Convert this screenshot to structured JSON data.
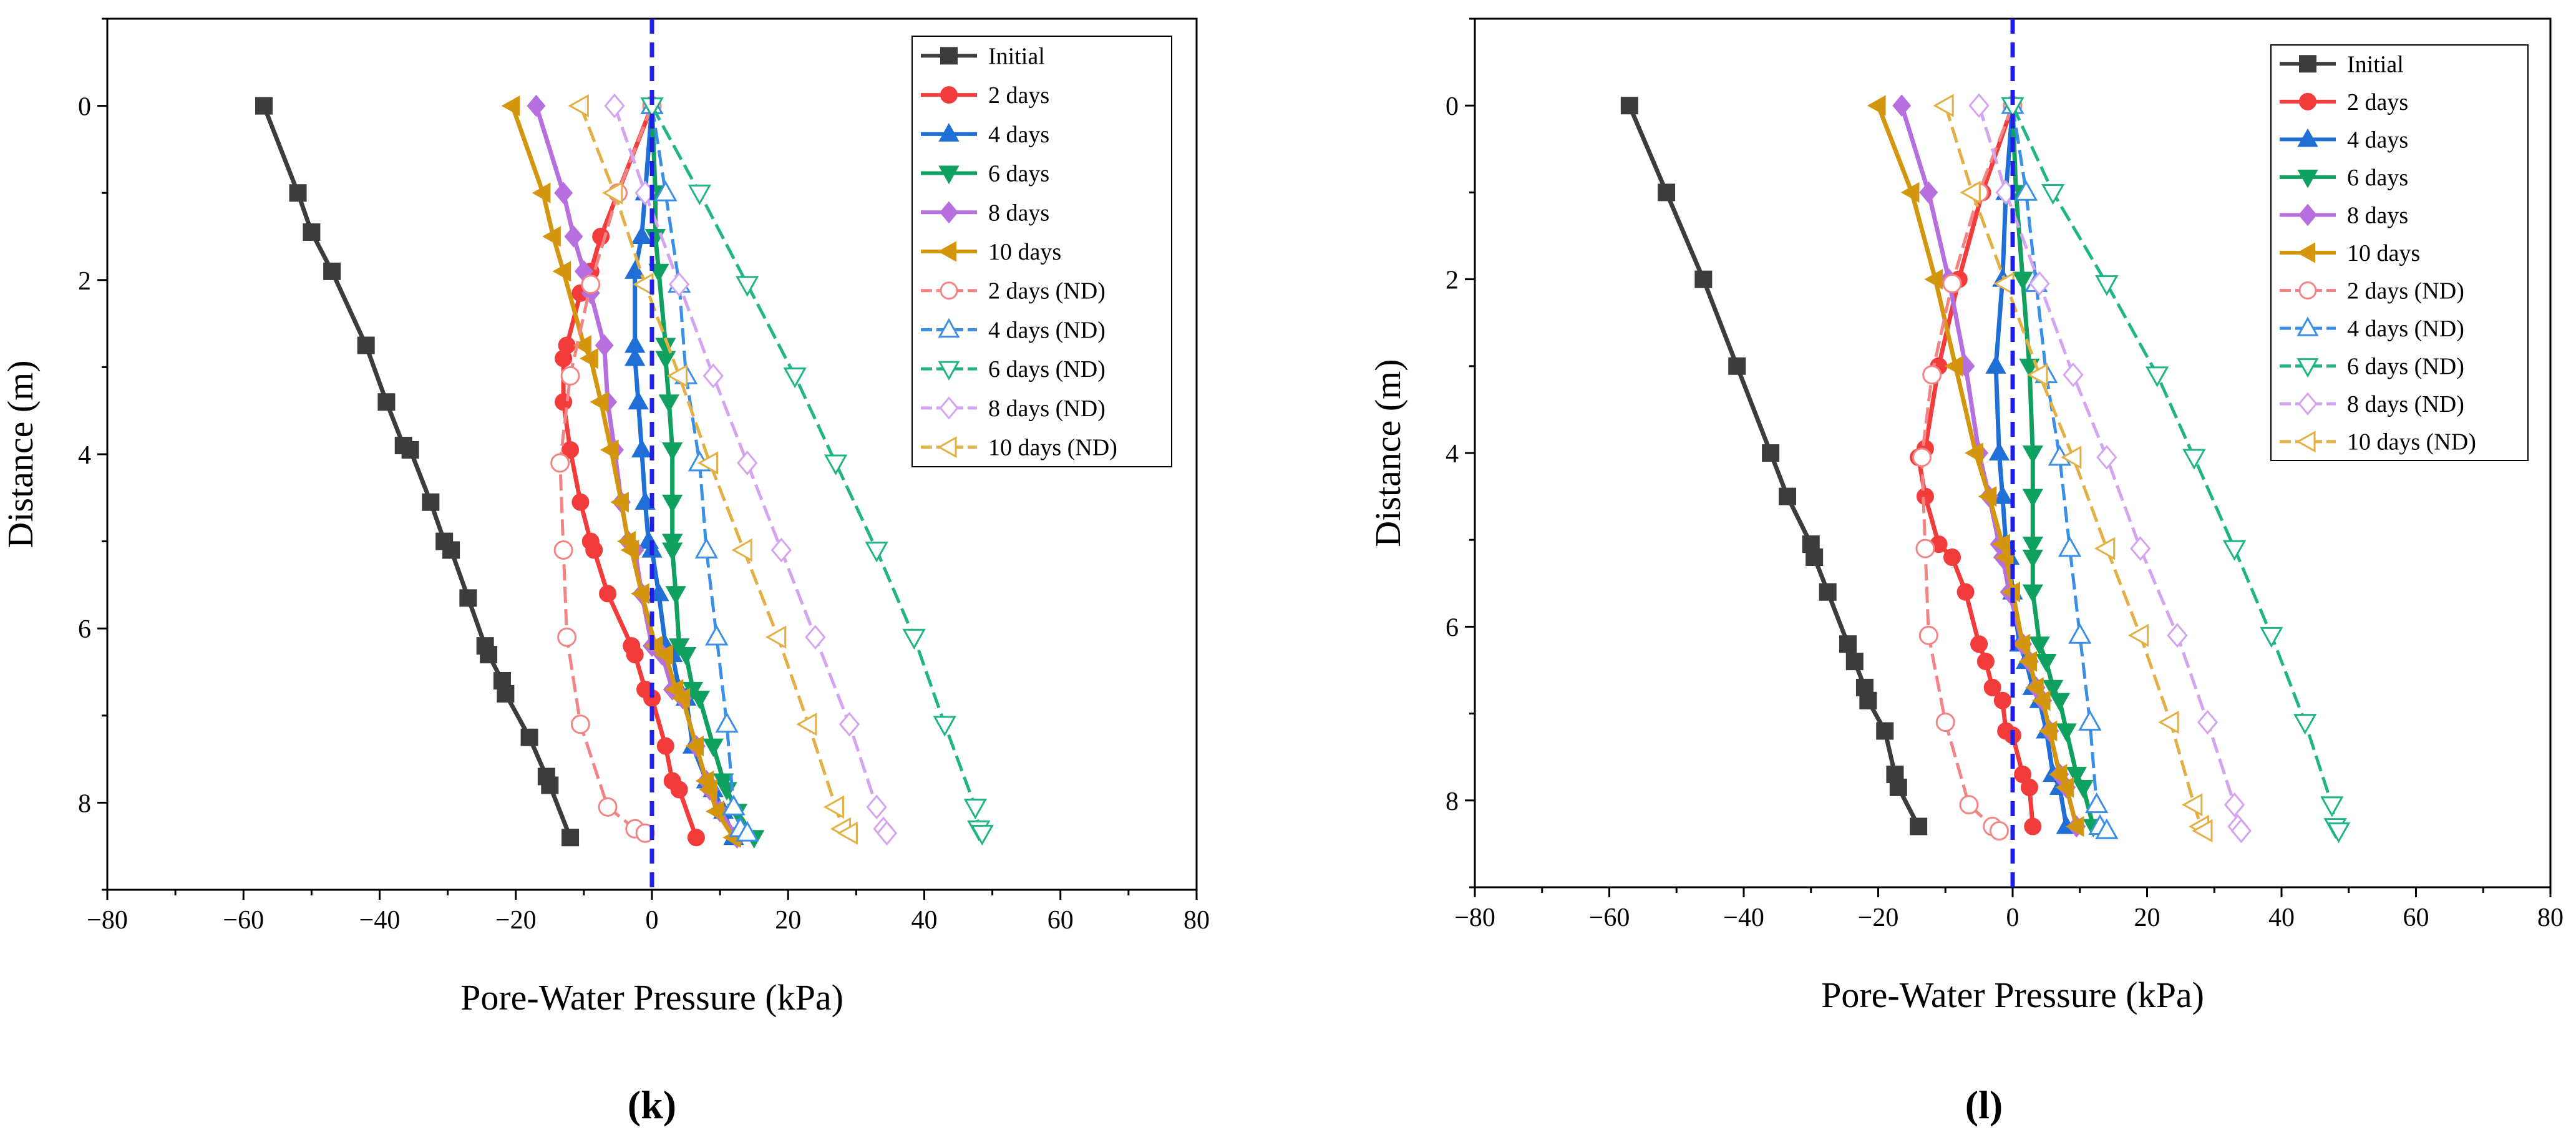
{
  "chart_data": [
    {
      "type": "line",
      "panel_label": "(k)",
      "xlabel": "Pore-Water Pressure (kPa)",
      "ylabel": "Distance (m)",
      "xlim": [
        -80,
        80
      ],
      "ylim": [
        9,
        -1
      ],
      "xticks": [
        "−80",
        "−60",
        "−40",
        "−20",
        "0",
        "20",
        "40",
        "60",
        "80"
      ],
      "yticks": [
        "0",
        "2",
        "4",
        "6",
        "8"
      ],
      "reference_line": {
        "x": 0,
        "style": "dashed"
      },
      "legend_position": "top-right",
      "series": [
        {
          "name": "Initial",
          "x": [
            -57,
            -52,
            -50,
            -47,
            -42,
            -39,
            -36.5,
            -35.5,
            -32.5,
            -30.5,
            -29.5,
            -27,
            -24.5,
            -24,
            -22,
            -21.5,
            -18,
            -15.5,
            -15,
            -12
          ],
          "y": [
            0,
            1,
            1.45,
            1.9,
            2.75,
            3.4,
            3.9,
            3.95,
            4.55,
            5.0,
            5.1,
            5.65,
            6.2,
            6.3,
            6.6,
            6.75,
            7.25,
            7.7,
            7.8,
            8.4
          ]
        },
        {
          "name": "2 days",
          "x": [
            0,
            -5,
            -7.5,
            -9,
            -10.5,
            -12.5,
            -13,
            -13,
            -12,
            -10.5,
            -9,
            -8.5,
            -6.5,
            -3,
            -2.5,
            -1,
            0,
            2,
            3,
            4,
            6.5
          ],
          "y": [
            0,
            1,
            1.5,
            1.9,
            2.15,
            2.75,
            2.9,
            3.4,
            3.95,
            4.55,
            5.0,
            5.1,
            5.6,
            6.2,
            6.3,
            6.7,
            6.8,
            7.35,
            7.75,
            7.85,
            8.4
          ]
        },
        {
          "name": "4 days",
          "x": [
            0,
            -1,
            -1.5,
            -2.5,
            -2.5,
            -2.5,
            -2,
            -1.5,
            -1,
            -0.5,
            0,
            1,
            2,
            3,
            4,
            5,
            6,
            8,
            9,
            10.5,
            12
          ],
          "y": [
            0,
            1,
            1.5,
            1.9,
            2.75,
            2.9,
            3.4,
            3.95,
            4.55,
            5.0,
            5.1,
            5.6,
            6.2,
            6.3,
            6.7,
            6.8,
            7.35,
            7.75,
            7.85,
            8.1,
            8.4
          ]
        },
        {
          "name": "6 days",
          "x": [
            0,
            0.5,
            0.5,
            1,
            2,
            2,
            2.5,
            3,
            3,
            3,
            3,
            3.5,
            4,
            5,
            6,
            7,
            9,
            10.5,
            11,
            12.5,
            15
          ],
          "y": [
            0,
            1,
            1.5,
            1.9,
            2.75,
            2.9,
            3.4,
            3.95,
            4.55,
            5.0,
            5.1,
            5.6,
            6.2,
            6.3,
            6.7,
            6.8,
            7.35,
            7.75,
            7.85,
            8.1,
            8.4
          ]
        },
        {
          "name": "8 days",
          "x": [
            -17,
            -13,
            -11.5,
            -10,
            -9,
            -7,
            -6.5,
            -5.5,
            -4.5,
            -3.5,
            -2.5,
            -1.5,
            0,
            1.5,
            3,
            4.5,
            6.5,
            8,
            8.5,
            10,
            12.5
          ],
          "y": [
            0,
            1,
            1.5,
            1.9,
            2.15,
            2.75,
            3.4,
            3.95,
            4.55,
            5.0,
            5.1,
            5.6,
            6.2,
            6.3,
            6.7,
            6.8,
            7.35,
            7.75,
            7.85,
            8.1,
            8.4
          ]
        },
        {
          "name": "10 days",
          "x": [
            -20.5,
            -16,
            -14.5,
            -13,
            -10,
            -9,
            -7.5,
            -6,
            -4.5,
            -3.5,
            -3,
            -1.5,
            0.5,
            2,
            3.5,
            4.5,
            6.5,
            8,
            8.5,
            9.5,
            12
          ],
          "y": [
            0,
            1,
            1.5,
            1.9,
            2.75,
            2.9,
            3.4,
            3.95,
            4.55,
            5.0,
            5.1,
            5.6,
            6.2,
            6.3,
            6.7,
            6.8,
            7.35,
            7.75,
            7.85,
            8.1,
            8.4
          ]
        },
        {
          "name": "2 days (ND)",
          "x": [
            0,
            -5,
            -9,
            -12,
            -13.5,
            -13,
            -12.5,
            -10.5,
            -6.5,
            -2.5,
            -1
          ],
          "y": [
            0,
            1,
            2.05,
            3.1,
            4.1,
            5.1,
            6.1,
            7.1,
            8.05,
            8.3,
            8.35
          ]
        },
        {
          "name": "4 days (ND)",
          "x": [
            0,
            2,
            4,
            5,
            7,
            8,
            9.5,
            11,
            12,
            13,
            14
          ],
          "y": [
            0,
            1,
            2.05,
            3.1,
            4.1,
            5.1,
            6.1,
            7.1,
            8.05,
            8.3,
            8.35
          ]
        },
        {
          "name": "6 days (ND)",
          "x": [
            0,
            7,
            14,
            21,
            27,
            33,
            38.5,
            43,
            47.5,
            48,
            48.5
          ],
          "y": [
            0,
            1,
            2.05,
            3.1,
            4.1,
            5.1,
            6.1,
            7.1,
            8.05,
            8.3,
            8.35
          ]
        },
        {
          "name": "8 days (ND)",
          "x": [
            -5.5,
            -1,
            4,
            9,
            14,
            19,
            24,
            29,
            33,
            34,
            34.5
          ],
          "y": [
            0,
            1,
            2.05,
            3.1,
            4.1,
            5.1,
            6.1,
            7.1,
            8.05,
            8.3,
            8.35
          ]
        },
        {
          "name": "10 days (ND)",
          "x": [
            -10.5,
            -5.5,
            -1,
            4,
            8.5,
            13.5,
            18.5,
            23,
            27,
            28,
            29
          ],
          "y": [
            0,
            1,
            2.05,
            3.1,
            4.1,
            5.1,
            6.1,
            7.1,
            8.05,
            8.3,
            8.35
          ]
        }
      ]
    },
    {
      "type": "line",
      "panel_label": "(l)",
      "xlabel": "Pore-Water Pressure (kPa)",
      "ylabel": "Distance (m)",
      "xlim": [
        -80,
        80
      ],
      "ylim": [
        9,
        -1
      ],
      "xticks": [
        "−80",
        "−60",
        "−40",
        "−20",
        "0",
        "20",
        "40",
        "60",
        "80"
      ],
      "yticks": [
        "0",
        "2",
        "4",
        "6",
        "8"
      ],
      "reference_line": {
        "x": 0,
        "style": "dashed"
      },
      "legend_position": "top-right",
      "series": [
        {
          "name": "Initial",
          "x": [
            -57,
            -51.5,
            -46,
            -41,
            -36,
            -33.5,
            -30,
            -29.5,
            -27.5,
            -24.5,
            -23.5,
            -22,
            -21.5,
            -19,
            -17.5,
            -17,
            -14
          ],
          "y": [
            0,
            1,
            2,
            3,
            4,
            4.5,
            5.05,
            5.2,
            5.6,
            6.2,
            6.4,
            6.7,
            6.85,
            7.2,
            7.7,
            7.85,
            8.3
          ]
        },
        {
          "name": "2 days",
          "x": [
            0,
            -4.5,
            -8,
            -11,
            -13,
            -14,
            -13,
            -11,
            -9,
            -7,
            -5,
            -4,
            -3,
            -1.5,
            -1,
            0,
            1.5,
            2.5,
            3
          ],
          "y": [
            0,
            1,
            2,
            3,
            3.95,
            4.05,
            4.5,
            5.05,
            5.2,
            5.6,
            6.2,
            6.4,
            6.7,
            6.85,
            7.2,
            7.25,
            7.7,
            7.85,
            8.3
          ]
        },
        {
          "name": "4 days",
          "x": [
            0,
            -1,
            -1.5,
            -2.5,
            -2,
            -1.5,
            -1,
            -0.5,
            0,
            1,
            2,
            3,
            4,
            5,
            6,
            7,
            8
          ],
          "y": [
            0,
            1,
            2,
            3,
            4,
            4.5,
            5.05,
            5.2,
            5.6,
            6.2,
            6.4,
            6.7,
            6.85,
            7.2,
            7.7,
            7.85,
            8.3
          ]
        },
        {
          "name": "6 days",
          "x": [
            0,
            0.5,
            1.5,
            2.5,
            3,
            3,
            3,
            3,
            3,
            4,
            5,
            6,
            7,
            8,
            9.5,
            10.5,
            12
          ],
          "y": [
            0,
            1,
            2,
            3,
            4,
            4.5,
            5.05,
            5.2,
            5.6,
            6.2,
            6.4,
            6.7,
            6.85,
            7.2,
            7.7,
            7.85,
            8.3
          ]
        },
        {
          "name": "8 days",
          "x": [
            -16.5,
            -12.5,
            -9.5,
            -7,
            -5,
            -3.5,
            -2,
            -1.5,
            -0.5,
            1.5,
            2.5,
            3.5,
            4.5,
            5.5,
            7,
            8,
            9.5
          ],
          "y": [
            0,
            1,
            2,
            3,
            4,
            4.5,
            5.05,
            5.2,
            5.6,
            6.2,
            6.4,
            6.7,
            6.85,
            7.2,
            7.7,
            7.85,
            8.3
          ]
        },
        {
          "name": "10 days",
          "x": [
            -20,
            -15,
            -11.5,
            -8.5,
            -5.5,
            -3.5,
            -1.5,
            -1,
            0,
            1.5,
            2.5,
            3.5,
            4.5,
            5.5,
            7,
            8,
            9.5
          ],
          "y": [
            0,
            1,
            2,
            3,
            4,
            4.5,
            5.05,
            5.2,
            5.6,
            6.2,
            6.4,
            6.7,
            6.85,
            7.2,
            7.7,
            7.85,
            8.3
          ]
        },
        {
          "name": "2 days (ND)",
          "x": [
            0,
            -5,
            -9,
            -12,
            -13.5,
            -13,
            -12.5,
            -10,
            -6.5,
            -3,
            -2
          ],
          "y": [
            0,
            1,
            2.05,
            3.1,
            4.05,
            5.1,
            6.1,
            7.1,
            8.05,
            8.3,
            8.35
          ]
        },
        {
          "name": "4 days (ND)",
          "x": [
            0,
            2,
            3.5,
            5,
            7,
            8.5,
            10,
            11.5,
            12.5,
            13,
            14
          ],
          "y": [
            0,
            1,
            2.05,
            3.1,
            4.05,
            5.1,
            6.1,
            7.1,
            8.05,
            8.3,
            8.35
          ]
        },
        {
          "name": "6 days (ND)",
          "x": [
            0,
            6,
            14,
            21.5,
            27,
            33,
            38.5,
            43.5,
            47.5,
            48,
            48.5
          ],
          "y": [
            0,
            1,
            2.05,
            3.1,
            4.05,
            5.1,
            6.1,
            7.1,
            8.05,
            8.3,
            8.35
          ]
        },
        {
          "name": "8 days (ND)",
          "x": [
            -5,
            -1,
            4,
            9,
            14,
            19,
            24.5,
            29,
            33,
            33.5,
            34
          ],
          "y": [
            0,
            1,
            2.05,
            3.1,
            4.05,
            5.1,
            6.1,
            7.1,
            8.05,
            8.3,
            8.35
          ]
        },
        {
          "name": "10 days (ND)",
          "x": [
            -10,
            -6,
            -1,
            4,
            9,
            14,
            19,
            23.5,
            27,
            28,
            28.5
          ],
          "y": [
            0,
            1,
            2.05,
            3.1,
            4.05,
            5.1,
            6.1,
            7.1,
            8.05,
            8.3,
            8.35
          ]
        }
      ]
    }
  ],
  "styles": {
    "Initial": {
      "color": "#3c3c3c",
      "marker": "square",
      "filled": true
    },
    "2 days": {
      "color": "#f23c3c",
      "marker": "circle",
      "filled": true
    },
    "4 days": {
      "color": "#1f6fd6",
      "marker": "triangle-up",
      "filled": true
    },
    "6 days": {
      "color": "#10a160",
      "marker": "triangle-down",
      "filled": true
    },
    "8 days": {
      "color": "#b76fe0",
      "marker": "diamond",
      "filled": true
    },
    "10 days": {
      "color": "#d4960e",
      "marker": "triangle-left",
      "filled": true
    },
    "2 days (ND)": {
      "color": "#f38484",
      "marker": "circle",
      "filled": false
    },
    "4 days (ND)": {
      "color": "#3b8fe6",
      "marker": "triangle-up",
      "filled": false
    },
    "6 days (ND)": {
      "color": "#20b486",
      "marker": "triangle-down",
      "filled": false
    },
    "8 days (ND)": {
      "color": "#d3a4f0",
      "marker": "diamond",
      "filled": false
    },
    "10 days (ND)": {
      "color": "#e2b045",
      "marker": "triangle-left",
      "filled": false
    },
    "reference_line_color": "#1f1fe8"
  }
}
